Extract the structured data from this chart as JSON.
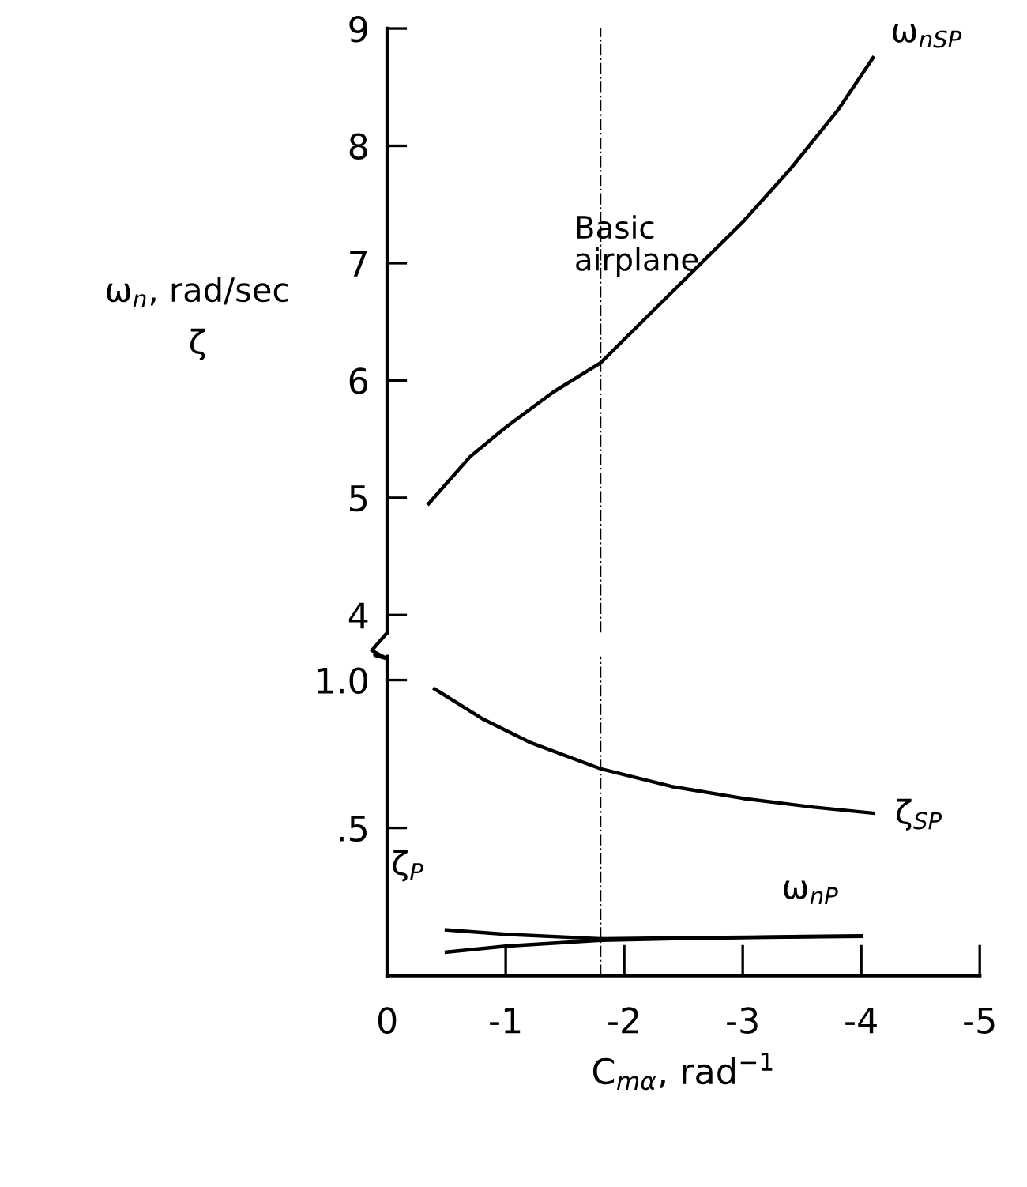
{
  "chart_data": [
    {
      "type": "line",
      "ylabel": "ω$_{n}$, rad/sec\nζ",
      "xlim": [
        0,
        -5
      ],
      "ylim": [
        3.85,
        9
      ],
      "xticks": [
        0,
        -1,
        -2,
        -3,
        -4,
        -5
      ],
      "yticks": [
        4,
        5,
        6,
        7,
        8,
        9
      ],
      "tick_labels": "y",
      "grid": false,
      "legend": false,
      "ref_lines": [
        {
          "axis": "x",
          "value": -1.8,
          "label": "Basic\nairplane",
          "line_style": "dashdot",
          "color": "#000000"
        }
      ],
      "series": [
        {
          "name": "ω$_{nSP}$",
          "color": "#000000",
          "x": [
            -0.35,
            -0.7,
            -1.0,
            -1.4,
            -1.8,
            -2.2,
            -2.6,
            -3.0,
            -3.4,
            -3.8,
            -4.1
          ],
          "values": [
            4.95,
            5.35,
            5.6,
            5.9,
            6.15,
            6.55,
            6.95,
            7.35,
            7.8,
            8.3,
            8.75
          ]
        }
      ]
    },
    {
      "type": "line",
      "xlabel": "C$_{mα}$, rad$^{−1}$",
      "xlim": [
        0,
        -5
      ],
      "ylim": [
        0,
        1.08
      ],
      "xticks": [
        0,
        -1,
        -2,
        -3,
        -4,
        -5
      ],
      "yticks": [
        {
          "value": 0.5,
          "label": ".5"
        },
        {
          "value": 1.0,
          "label": "1.0"
        }
      ],
      "grid": false,
      "legend": false,
      "ref_lines": [
        {
          "axis": "x",
          "value": -1.8,
          "line_style": "dashdot",
          "color": "#000000"
        }
      ],
      "series": [
        {
          "name": "ζ$_{SP}$",
          "color": "#000000",
          "x": [
            -0.4,
            -0.8,
            -1.2,
            -1.8,
            -2.4,
            -3.0,
            -3.6,
            -4.1
          ],
          "values": [
            0.97,
            0.87,
            0.79,
            0.7,
            0.64,
            0.6,
            0.57,
            0.55
          ]
        },
        {
          "name": "ζ$_{P}$",
          "color": "#000000",
          "x": [
            -0.5,
            -1.0,
            -1.8,
            -2.5,
            -3.2,
            -4.0
          ],
          "values": [
            0.155,
            0.14,
            0.125,
            0.128,
            0.131,
            0.135
          ]
        },
        {
          "name": "ω$_{nP}$",
          "color": "#000000",
          "x": [
            -0.5,
            -1.0,
            -1.8,
            -2.5,
            -3.2,
            -4.0
          ],
          "values": [
            0.08,
            0.1,
            0.12,
            0.126,
            0.13,
            0.133
          ]
        }
      ]
    }
  ]
}
